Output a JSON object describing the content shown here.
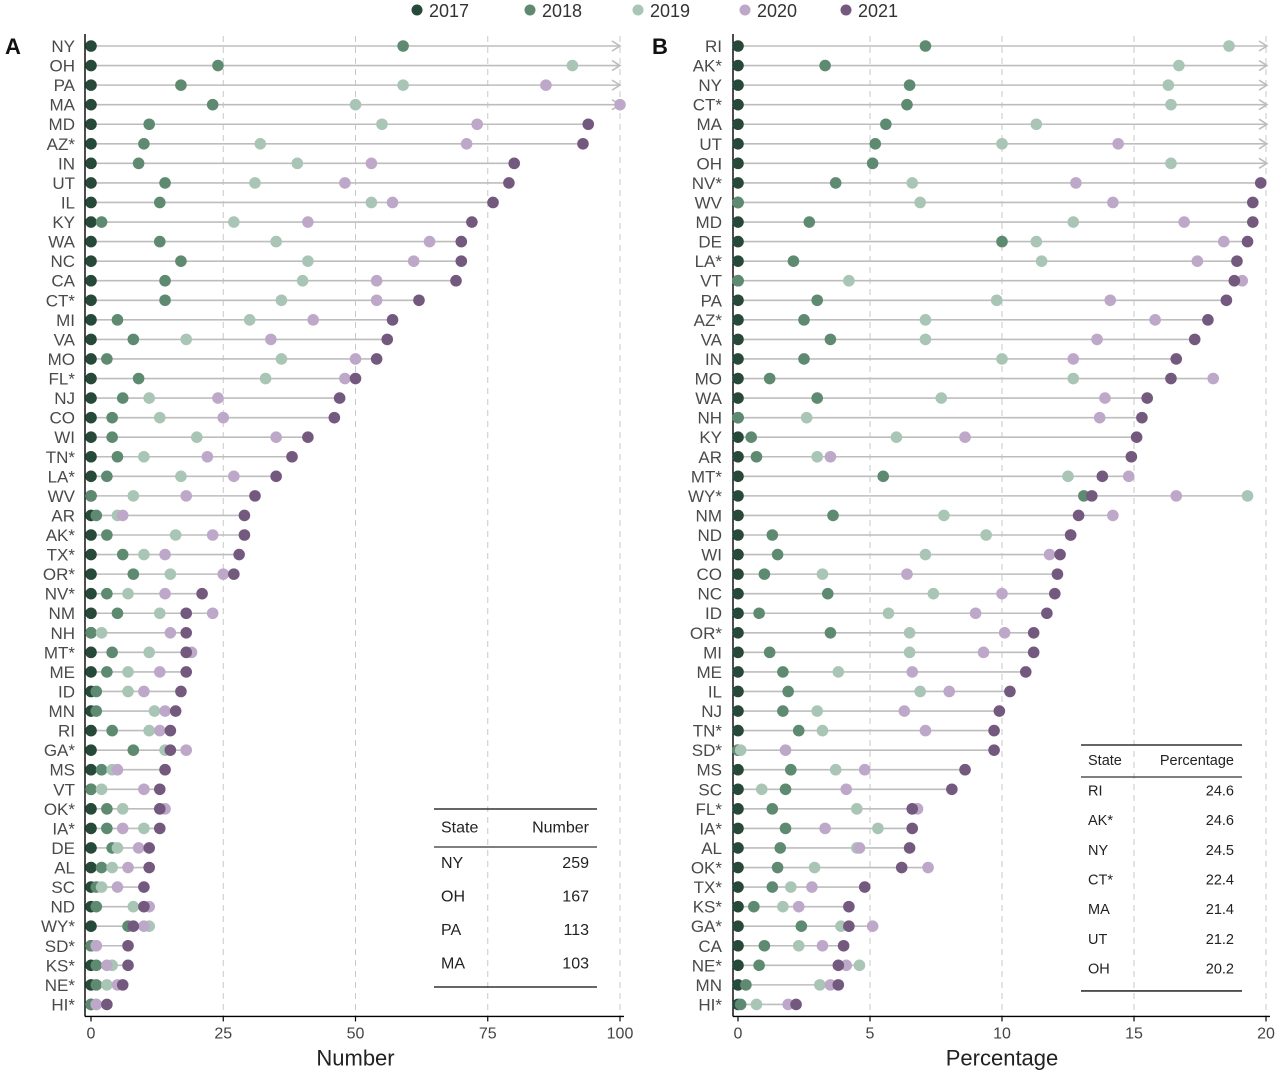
{
  "legend": {
    "entries": [
      {
        "label": "2017",
        "color": "#26493a"
      },
      {
        "label": "2018",
        "color": "#5f8a72"
      },
      {
        "label": "2019",
        "color": "#a9c5b5"
      },
      {
        "label": "2020",
        "color": "#bda8c9"
      },
      {
        "label": "2021",
        "color": "#74597f"
      }
    ]
  },
  "chart_data": [
    {
      "type": "dot-range",
      "panel_label": "A",
      "xlabel": "Number",
      "xlim": [
        0,
        100
      ],
      "xticks": [
        0,
        25,
        50,
        75,
        100
      ],
      "grid": "dashed vertical at ticks",
      "series_years": [
        "2017",
        "2018",
        "2019",
        "2020",
        "2021"
      ],
      "rows": [
        {
          "state": "NY",
          "values": [
            0,
            59,
            259,
            null,
            null
          ],
          "overflow": true
        },
        {
          "state": "OH",
          "values": [
            0,
            24,
            91,
            167,
            null
          ],
          "overflow": true
        },
        {
          "state": "PA",
          "values": [
            0,
            17,
            59,
            86,
            113
          ],
          "overflow": true
        },
        {
          "state": "MA",
          "values": [
            0,
            23,
            50,
            100,
            103
          ],
          "overflow": true
        },
        {
          "state": "MD",
          "values": [
            0,
            11,
            55,
            73,
            94
          ]
        },
        {
          "state": "AZ*",
          "values": [
            0,
            10,
            32,
            71,
            93
          ]
        },
        {
          "state": "IN",
          "values": [
            0,
            9,
            39,
            53,
            80
          ]
        },
        {
          "state": "UT",
          "values": [
            0,
            14,
            31,
            48,
            79
          ]
        },
        {
          "state": "IL",
          "values": [
            0,
            13,
            53,
            57,
            76
          ]
        },
        {
          "state": "KY",
          "values": [
            0,
            2,
            27,
            41,
            72
          ]
        },
        {
          "state": "WA",
          "values": [
            0,
            13,
            35,
            64,
            70
          ]
        },
        {
          "state": "NC",
          "values": [
            0,
            17,
            41,
            61,
            70
          ]
        },
        {
          "state": "CA",
          "values": [
            0,
            14,
            40,
            54,
            69
          ]
        },
        {
          "state": "CT*",
          "values": [
            0,
            14,
            36,
            54,
            62
          ]
        },
        {
          "state": "MI",
          "values": [
            0,
            5,
            30,
            42,
            57
          ]
        },
        {
          "state": "VA",
          "values": [
            0,
            8,
            18,
            34,
            56
          ]
        },
        {
          "state": "MO",
          "values": [
            0,
            3,
            36,
            50,
            54
          ]
        },
        {
          "state": "FL*",
          "values": [
            0,
            9,
            33,
            48,
            50
          ]
        },
        {
          "state": "NJ",
          "values": [
            0,
            6,
            11,
            24,
            47
          ]
        },
        {
          "state": "CO",
          "values": [
            0,
            4,
            13,
            25,
            46
          ]
        },
        {
          "state": "WI",
          "values": [
            0,
            4,
            20,
            35,
            41
          ]
        },
        {
          "state": "TN*",
          "values": [
            0,
            5,
            10,
            22,
            38
          ]
        },
        {
          "state": "LA*",
          "values": [
            0,
            3,
            17,
            27,
            35
          ]
        },
        {
          "state": "WV",
          "values": [
            0,
            0,
            8,
            18,
            31
          ]
        },
        {
          "state": "AR",
          "values": [
            0,
            1,
            5,
            6,
            29
          ]
        },
        {
          "state": "AK*",
          "values": [
            0,
            3,
            16,
            23,
            29
          ]
        },
        {
          "state": "TX*",
          "values": [
            0,
            6,
            10,
            14,
            28
          ]
        },
        {
          "state": "OR*",
          "values": [
            0,
            8,
            15,
            25,
            27
          ]
        },
        {
          "state": "NV*",
          "values": [
            0,
            3,
            7,
            14,
            21
          ]
        },
        {
          "state": "NM",
          "values": [
            0,
            5,
            13,
            23,
            18
          ]
        },
        {
          "state": "NH",
          "values": [
            0,
            0,
            2,
            15,
            18
          ]
        },
        {
          "state": "MT*",
          "values": [
            0,
            4,
            11,
            19,
            18
          ]
        },
        {
          "state": "ME",
          "values": [
            0,
            3,
            7,
            13,
            18
          ]
        },
        {
          "state": "ID",
          "values": [
            0,
            1,
            7,
            10,
            17
          ]
        },
        {
          "state": "MN",
          "values": [
            0,
            1,
            12,
            14,
            16
          ]
        },
        {
          "state": "RI",
          "values": [
            0,
            4,
            11,
            13,
            15
          ]
        },
        {
          "state": "GA*",
          "values": [
            0,
            8,
            14,
            18,
            15
          ]
        },
        {
          "state": "MS",
          "values": [
            0,
            2,
            4,
            5,
            14
          ]
        },
        {
          "state": "VT",
          "values": [
            0,
            0,
            2,
            10,
            13
          ]
        },
        {
          "state": "OK*",
          "values": [
            0,
            3,
            6,
            14,
            13
          ]
        },
        {
          "state": "IA*",
          "values": [
            0,
            3,
            10,
            6,
            13
          ]
        },
        {
          "state": "DE",
          "values": [
            0,
            4,
            5,
            9,
            11
          ]
        },
        {
          "state": "AL",
          "values": [
            0,
            2,
            4,
            7,
            11
          ]
        },
        {
          "state": "SC",
          "values": [
            0,
            1,
            2,
            5,
            10
          ]
        },
        {
          "state": "ND",
          "values": [
            0,
            1,
            8,
            11,
            10
          ]
        },
        {
          "state": "WY*",
          "values": [
            0,
            7,
            11,
            10,
            8
          ]
        },
        {
          "state": "SD*",
          "values": [
            0,
            0,
            1,
            1,
            7
          ]
        },
        {
          "state": "KS*",
          "values": [
            0,
            1,
            4,
            3,
            7
          ]
        },
        {
          "state": "NE*",
          "values": [
            0,
            1,
            3,
            5,
            6
          ]
        },
        {
          "state": "HI*",
          "values": [
            0,
            0,
            1,
            1,
            3
          ]
        }
      ],
      "table": {
        "headers": [
          "State",
          "Number"
        ],
        "rows": [
          [
            "NY",
            "259"
          ],
          [
            "OH",
            "167"
          ],
          [
            "PA",
            "113"
          ],
          [
            "MA",
            "103"
          ]
        ]
      }
    },
    {
      "type": "dot-range",
      "panel_label": "B",
      "xlabel": "Percentage",
      "xlim": [
        0,
        20
      ],
      "xticks": [
        0,
        5,
        10,
        15,
        20
      ],
      "grid": "dashed vertical at ticks",
      "series_years": [
        "2017",
        "2018",
        "2019",
        "2020",
        "2021"
      ],
      "rows": [
        {
          "state": "RI",
          "values": [
            0,
            7.1,
            18.6,
            24.6,
            null
          ],
          "overflow": true
        },
        {
          "state": "AK*",
          "values": [
            0,
            3.3,
            16.7,
            24.6,
            null
          ],
          "overflow": true
        },
        {
          "state": "NY",
          "values": [
            0,
            6.5,
            16.3,
            24.5,
            null
          ],
          "overflow": true
        },
        {
          "state": "CT*",
          "values": [
            0,
            6.4,
            16.4,
            22.4,
            null
          ],
          "overflow": true
        },
        {
          "state": "MA",
          "values": [
            0,
            5.6,
            11.3,
            21.4,
            null
          ],
          "overflow": true
        },
        {
          "state": "UT",
          "values": [
            0,
            5.2,
            10.0,
            14.4,
            21.2
          ],
          "overflow": true
        },
        {
          "state": "OH",
          "values": [
            0,
            5.1,
            16.4,
            20.2,
            null
          ],
          "overflow": true
        },
        {
          "state": "NV*",
          "values": [
            0,
            3.7,
            6.6,
            12.8,
            19.8
          ]
        },
        {
          "state": "WV",
          "values": [
            0,
            0,
            6.9,
            14.2,
            19.5
          ]
        },
        {
          "state": "MD",
          "values": [
            0,
            2.7,
            12.7,
            16.9,
            19.5
          ]
        },
        {
          "state": "DE",
          "values": [
            0,
            10.0,
            11.3,
            18.4,
            19.3
          ]
        },
        {
          "state": "LA*",
          "values": [
            0,
            2.1,
            11.5,
            17.4,
            18.9
          ]
        },
        {
          "state": "VT",
          "values": [
            0,
            0,
            4.2,
            19.1,
            18.8
          ]
        },
        {
          "state": "PA",
          "values": [
            0,
            3.0,
            9.8,
            14.1,
            18.5
          ]
        },
        {
          "state": "AZ*",
          "values": [
            0,
            2.5,
            7.1,
            15.8,
            17.8
          ]
        },
        {
          "state": "VA",
          "values": [
            0,
            3.5,
            7.1,
            13.6,
            17.3
          ]
        },
        {
          "state": "IN",
          "values": [
            0,
            2.5,
            10.0,
            12.7,
            16.6
          ]
        },
        {
          "state": "MO",
          "values": [
            0,
            1.2,
            12.7,
            18.0,
            16.4
          ]
        },
        {
          "state": "WA",
          "values": [
            0,
            3.0,
            7.7,
            13.9,
            15.5
          ]
        },
        {
          "state": "NH",
          "values": [
            0,
            0,
            2.6,
            13.7,
            15.3
          ]
        },
        {
          "state": "KY",
          "values": [
            0,
            0.5,
            6.0,
            8.6,
            15.1
          ]
        },
        {
          "state": "AR",
          "values": [
            0,
            0.7,
            3.0,
            3.5,
            14.9
          ]
        },
        {
          "state": "MT*",
          "values": [
            0,
            5.5,
            12.5,
            14.8,
            13.8
          ]
        },
        {
          "state": "WY*",
          "values": [
            0,
            13.1,
            19.3,
            16.6,
            13.4
          ]
        },
        {
          "state": "NM",
          "values": [
            0,
            3.6,
            7.8,
            14.2,
            12.9
          ]
        },
        {
          "state": "ND",
          "values": [
            0,
            1.3,
            9.4,
            12.6,
            12.6
          ]
        },
        {
          "state": "WI",
          "values": [
            0,
            1.5,
            7.1,
            11.8,
            12.2
          ]
        },
        {
          "state": "CO",
          "values": [
            0,
            1.0,
            3.2,
            6.4,
            12.1
          ]
        },
        {
          "state": "NC",
          "values": [
            0,
            3.4,
            7.4,
            10.0,
            12.0
          ]
        },
        {
          "state": "ID",
          "values": [
            0,
            0.8,
            5.7,
            9.0,
            11.7
          ]
        },
        {
          "state": "OR*",
          "values": [
            0,
            3.5,
            6.5,
            10.1,
            11.2
          ]
        },
        {
          "state": "MI",
          "values": [
            0,
            1.2,
            6.5,
            9.3,
            11.2
          ]
        },
        {
          "state": "ME",
          "values": [
            0,
            1.7,
            3.8,
            6.6,
            10.9
          ]
        },
        {
          "state": "IL",
          "values": [
            0,
            1.9,
            6.9,
            8.0,
            10.3
          ]
        },
        {
          "state": "NJ",
          "values": [
            0,
            1.7,
            3.0,
            6.3,
            9.9
          ]
        },
        {
          "state": "TN*",
          "values": [
            0,
            2.3,
            3.2,
            7.1,
            9.7
          ]
        },
        {
          "state": "SD*",
          "values": [
            0,
            0,
            0.1,
            1.8,
            9.7
          ]
        },
        {
          "state": "MS",
          "values": [
            0,
            2.0,
            3.7,
            4.8,
            8.6
          ]
        },
        {
          "state": "SC",
          "values": [
            0,
            1.8,
            0.9,
            4.1,
            8.1
          ]
        },
        {
          "state": "FL*",
          "values": [
            0,
            1.3,
            4.5,
            6.8,
            6.6
          ]
        },
        {
          "state": "IA*",
          "values": [
            0,
            1.8,
            5.3,
            3.3,
            6.6
          ]
        },
        {
          "state": "AL",
          "values": [
            0,
            1.6,
            4.5,
            4.6,
            6.5
          ]
        },
        {
          "state": "OK*",
          "values": [
            0,
            1.5,
            2.9,
            7.2,
            6.2
          ]
        },
        {
          "state": "TX*",
          "values": [
            0,
            1.3,
            2.0,
            2.8,
            4.8
          ]
        },
        {
          "state": "KS*",
          "values": [
            0,
            0.6,
            1.7,
            2.3,
            4.2
          ]
        },
        {
          "state": "GA*",
          "values": [
            0,
            2.4,
            3.9,
            5.1,
            4.2
          ]
        },
        {
          "state": "CA",
          "values": [
            0,
            1.0,
            2.3,
            3.2,
            4.0
          ]
        },
        {
          "state": "NE*",
          "values": [
            0,
            0.8,
            4.6,
            4.1,
            3.8
          ]
        },
        {
          "state": "MN",
          "values": [
            0,
            0.3,
            3.1,
            3.5,
            3.8
          ]
        },
        {
          "state": "HI*",
          "values": [
            0,
            0.1,
            0.7,
            1.9,
            2.2
          ]
        }
      ],
      "table": {
        "headers": [
          "State",
          "Percentage"
        ],
        "rows": [
          [
            "RI",
            "24.6"
          ],
          [
            "AK*",
            "24.6"
          ],
          [
            "NY",
            "24.5"
          ],
          [
            "CT*",
            "22.4"
          ],
          [
            "MA",
            "21.4"
          ],
          [
            "UT",
            "21.2"
          ],
          [
            "OH",
            "20.2"
          ]
        ]
      }
    }
  ]
}
